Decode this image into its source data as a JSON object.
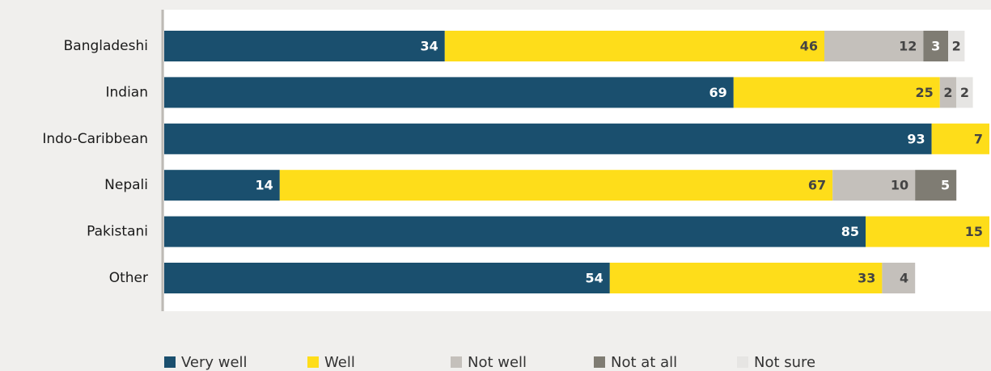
{
  "chart_data": {
    "type": "stacked-bar-horizontal",
    "categories": [
      "Bangladeshi",
      "Indian",
      "Indo-Caribbean",
      "Nepali",
      "Pakistani",
      "Other"
    ],
    "series": [
      {
        "name": "Very well",
        "color": "#1a4f6e",
        "values": [
          34,
          69,
          93,
          14,
          85,
          54
        ]
      },
      {
        "name": "Well",
        "color": "#fedd1a",
        "values": [
          46,
          25,
          7,
          67,
          15,
          33
        ]
      },
      {
        "name": "Not well",
        "color": "#c4c0bb",
        "values": [
          12,
          2,
          null,
          10,
          null,
          4
        ]
      },
      {
        "name": "Not at all",
        "color": "#7f7c73",
        "values": [
          3,
          null,
          null,
          5,
          null,
          null
        ]
      },
      {
        "name": "Not sure",
        "color": "#e6e5e3",
        "values": [
          2,
          2,
          null,
          null,
          null,
          null
        ]
      }
    ],
    "xlim": [
      0,
      100
    ]
  }
}
